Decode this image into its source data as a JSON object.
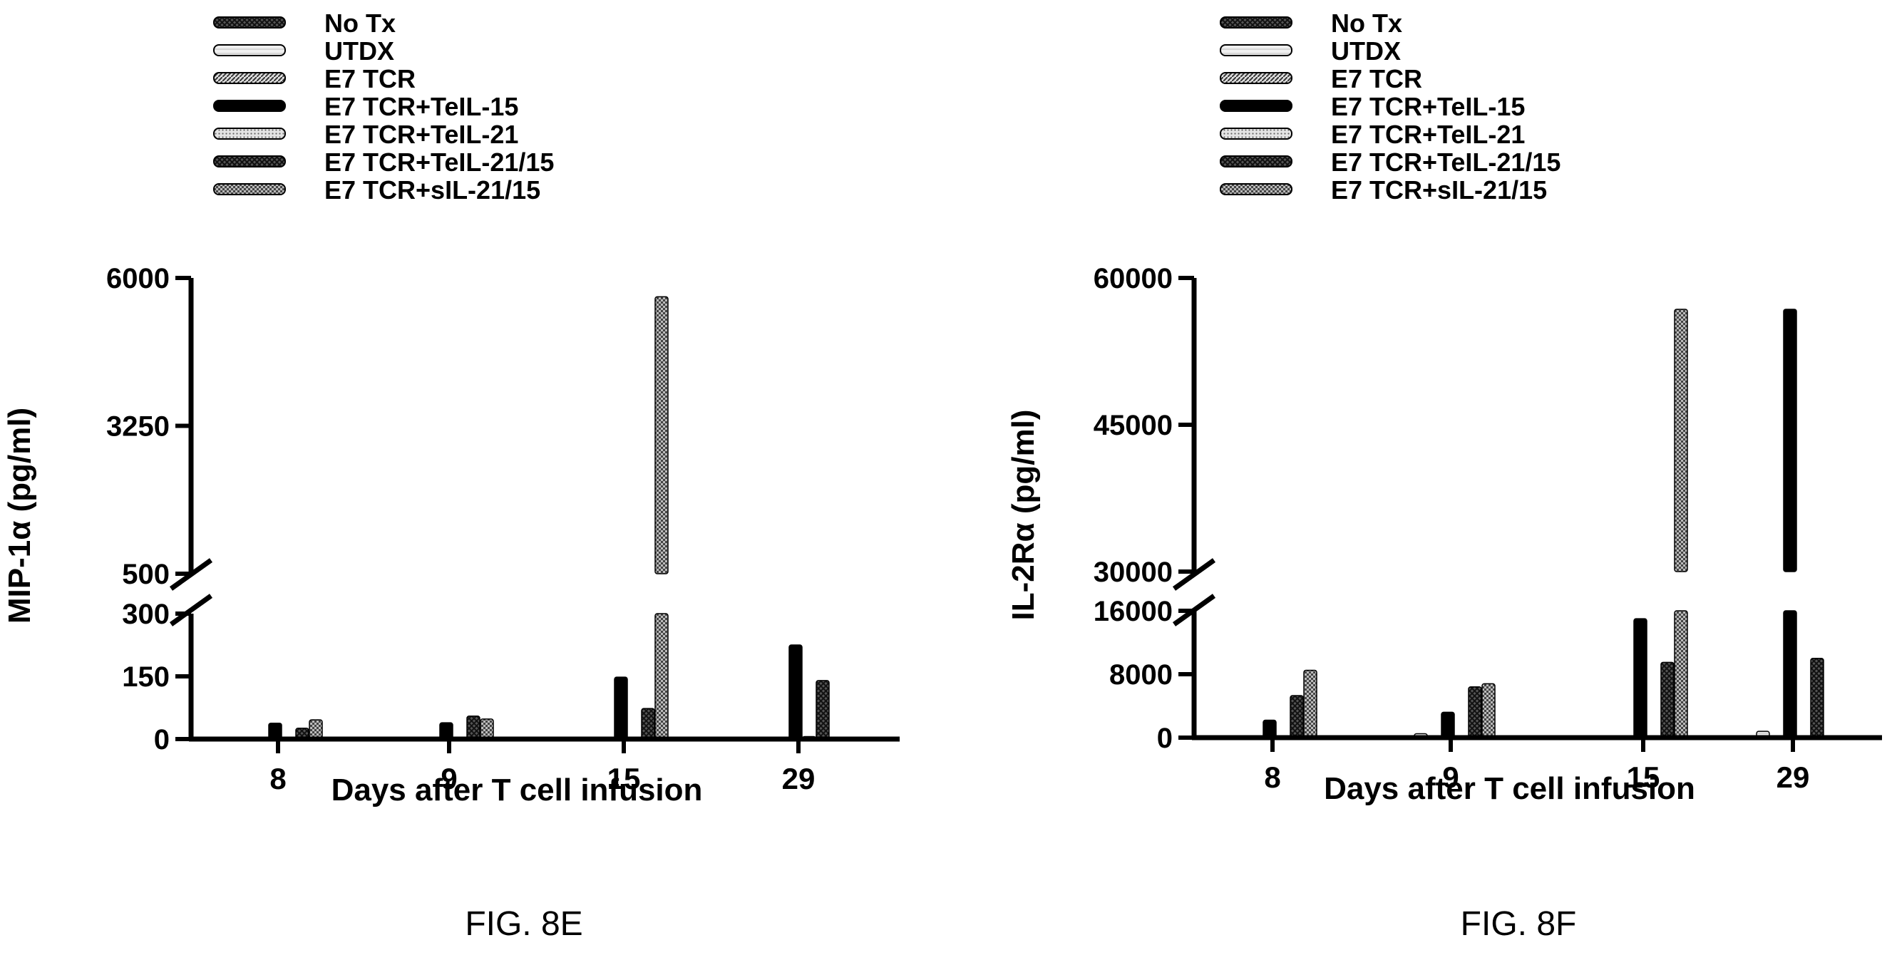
{
  "legend_entries": [
    {
      "label": "No Tx",
      "pattern": "crosshatch-dark"
    },
    {
      "label": "UTDX",
      "pattern": "outline-light"
    },
    {
      "label": "E7 TCR",
      "pattern": "diagonal"
    },
    {
      "label": "E7 TCR+TeIL-15",
      "pattern": "solid-black"
    },
    {
      "label": "E7 TCR+TeIL-21",
      "pattern": "dots-light"
    },
    {
      "label": "E7 TCR+TeIL-21/15",
      "pattern": "crosshatch-dark"
    },
    {
      "label": "E7 TCR+sIL-21/15",
      "pattern": "checker"
    }
  ],
  "colors": {
    "ink": "#000000",
    "background": "#ffffff"
  },
  "chart_data": [
    {
      "type": "bar",
      "caption": "FIG. 8E",
      "title": "",
      "xlabel": "Days after T cell infusion",
      "ylabel": "MIP-1α (pg/ml)",
      "axis_break": {
        "lower_range": [
          0,
          300
        ],
        "upper_range": [
          500,
          6000
        ]
      },
      "yticks": [
        0,
        150,
        300,
        500,
        3250,
        6000
      ],
      "categories": [
        "8",
        "9",
        "15",
        "29"
      ],
      "series": [
        {
          "name": "No Tx",
          "values": [
            0,
            0,
            0,
            0
          ]
        },
        {
          "name": "UTDX",
          "values": [
            0,
            0,
            0,
            0
          ]
        },
        {
          "name": "E7 TCR",
          "values": [
            0,
            0,
            0,
            0
          ]
        },
        {
          "name": "E7 TCR+TeIL-15",
          "values": [
            38,
            39,
            148,
            225
          ]
        },
        {
          "name": "E7 TCR+TeIL-21",
          "values": [
            0,
            0,
            0,
            6
          ]
        },
        {
          "name": "E7 TCR+TeIL-21/15",
          "values": [
            26,
            55,
            73,
            140
          ]
        },
        {
          "name": "E7 TCR+sIL-21/15",
          "values": [
            46,
            48,
            5650,
            0
          ]
        }
      ]
    },
    {
      "type": "bar",
      "caption": "FIG. 8F",
      "title": "",
      "xlabel": "Days after T cell infusion",
      "ylabel": "IL-2Rα (pg/ml)",
      "axis_break": {
        "lower_range": [
          0,
          16000
        ],
        "upper_range": [
          30000,
          60000
        ]
      },
      "yticks": [
        0,
        8000,
        16000,
        30000,
        45000,
        60000
      ],
      "categories": [
        "8",
        "9",
        "15",
        "29"
      ],
      "series": [
        {
          "name": "No Tx",
          "values": [
            0,
            0,
            0,
            0
          ]
        },
        {
          "name": "UTDX",
          "values": [
            0,
            500,
            0,
            800
          ]
        },
        {
          "name": "E7 TCR",
          "values": [
            0,
            0,
            0,
            0
          ]
        },
        {
          "name": "E7 TCR+TeIL-15",
          "values": [
            2200,
            3200,
            15000,
            56800
          ]
        },
        {
          "name": "E7 TCR+TeIL-21",
          "values": [
            0,
            0,
            0,
            0
          ]
        },
        {
          "name": "E7 TCR+TeIL-21/15",
          "values": [
            5300,
            6400,
            9500,
            10000
          ]
        },
        {
          "name": "E7 TCR+sIL-21/15",
          "values": [
            8500,
            6800,
            56800,
            0
          ]
        }
      ]
    }
  ]
}
